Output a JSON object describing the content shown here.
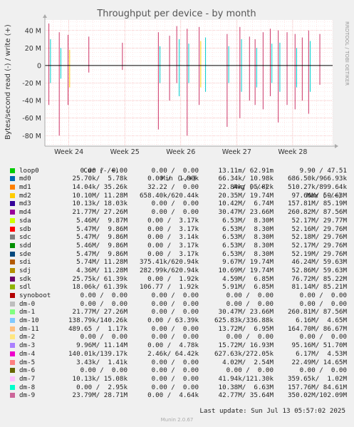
{
  "chart_data": {
    "type": "line",
    "title": "Throughput per device - by month",
    "ylabel": "Bytes/second read (-) / write (+)",
    "side_label": "RRDTOOL / TOBI OETIKER",
    "ylim": [
      -92000000,
      52000000
    ],
    "yticks": [
      {
        "v": 40000000,
        "label": "40 M"
      },
      {
        "v": 20000000,
        "label": "20 M"
      },
      {
        "v": 0,
        "label": "0"
      },
      {
        "v": -20000000,
        "label": "-20 M"
      },
      {
        "v": -40000000,
        "label": "-40 M"
      },
      {
        "v": -60000000,
        "label": "-60 M"
      },
      {
        "v": -80000000,
        "label": "-80 M"
      }
    ],
    "xlim": [
      0,
      36
    ],
    "xticks": [
      {
        "v": 3,
        "label": "Week 24"
      },
      {
        "v": 10,
        "label": "Week 25"
      },
      {
        "v": 17,
        "label": "Week 26"
      },
      {
        "v": 24,
        "label": "Week 27"
      },
      {
        "v": 31,
        "label": "Week 28"
      }
    ],
    "spikes": [
      {
        "x": 0.5,
        "up": 48,
        "down": -45,
        "color": "#cc3366"
      },
      {
        "x": 0.7,
        "up": 30,
        "down": -20,
        "color": "#00cccc"
      },
      {
        "x": 1.8,
        "up": 38,
        "down": -80,
        "color": "#cc3366"
      },
      {
        "x": 2.0,
        "up": 20,
        "down": -15,
        "color": "#00cccc"
      },
      {
        "x": 2.9,
        "up": 35,
        "down": -45,
        "color": "#cc3366"
      },
      {
        "x": 3.1,
        "up": 18,
        "down": -25,
        "color": "#ffcc00"
      },
      {
        "x": 5.5,
        "up": 33,
        "down": -8,
        "color": "#cc3366"
      },
      {
        "x": 9.7,
        "up": 26,
        "down": -5,
        "color": "#cc3366"
      },
      {
        "x": 14.2,
        "up": 38,
        "down": -73,
        "color": "#cc3366"
      },
      {
        "x": 14.4,
        "up": 22,
        "down": -20,
        "color": "#00cccc"
      },
      {
        "x": 15.6,
        "up": 34,
        "down": -40,
        "color": "#cc3366"
      },
      {
        "x": 16.5,
        "up": 45,
        "down": -20,
        "color": "#cc3366"
      },
      {
        "x": 16.8,
        "up": 30,
        "down": -35,
        "color": "#00cccc"
      },
      {
        "x": 17.8,
        "up": 42,
        "down": -80,
        "color": "#cc3366"
      },
      {
        "x": 18.0,
        "up": 25,
        "down": -20,
        "color": "#00cccc"
      },
      {
        "x": 19.3,
        "up": 44,
        "down": -45,
        "color": "#cc3366"
      },
      {
        "x": 19.5,
        "up": 28,
        "down": -25,
        "color": "#ffcc00"
      },
      {
        "x": 20.1,
        "up": 32,
        "down": -30,
        "color": "#00cccc"
      },
      {
        "x": 22.8,
        "up": 36,
        "down": -70,
        "color": "#cc3366"
      },
      {
        "x": 23.0,
        "up": 22,
        "down": -20,
        "color": "#00cccc"
      },
      {
        "x": 24.4,
        "up": 44,
        "down": -60,
        "color": "#cc3366"
      },
      {
        "x": 24.6,
        "up": 30,
        "down": -30,
        "color": "#00cccc"
      },
      {
        "x": 25.6,
        "up": 33,
        "down": -40,
        "color": "#cc3366"
      },
      {
        "x": 26.3,
        "up": 30,
        "down": -45,
        "color": "#cc3366"
      },
      {
        "x": 26.5,
        "up": 20,
        "down": -25,
        "color": "#00cccc"
      },
      {
        "x": 27.3,
        "up": 38,
        "down": -50,
        "color": "#cc3366"
      },
      {
        "x": 28.2,
        "up": 42,
        "down": -35,
        "color": "#cc3366"
      },
      {
        "x": 28.4,
        "up": 25,
        "down": -20,
        "color": "#00cccc"
      },
      {
        "x": 29.2,
        "up": 40,
        "down": -65,
        "color": "#cc3366"
      },
      {
        "x": 29.4,
        "up": 26,
        "down": -30,
        "color": "#00cccc"
      },
      {
        "x": 30.3,
        "up": 38,
        "down": -45,
        "color": "#cc3366"
      },
      {
        "x": 31.3,
        "up": 36,
        "down": -50,
        "color": "#cc3366"
      },
      {
        "x": 31.5,
        "up": 20,
        "down": -25,
        "color": "#00cccc"
      },
      {
        "x": 32.2,
        "up": 32,
        "down": -40,
        "color": "#cc3366"
      },
      {
        "x": 33.0,
        "up": 40,
        "down": -55,
        "color": "#cc3366"
      },
      {
        "x": 33.2,
        "up": 28,
        "down": -30,
        "color": "#00cccc"
      },
      {
        "x": 34.4,
        "up": 36,
        "down": -22,
        "color": "#cc3366"
      }
    ]
  },
  "legend": {
    "headers": {
      "cur": "Cur (-/+)",
      "min": "Min (-/+)",
      "avg": "Avg (-/+)",
      "max": "Max (-/+)"
    },
    "rows": [
      {
        "name": "loop0",
        "color": "#00cc00",
        "cur": "0.00 /  0.00",
        "min": "0.00 /  0.00",
        "avg": "13.11m/ 62.91m",
        "max": "9.90 / 47.51"
      },
      {
        "name": "md0",
        "color": "#0066b3",
        "cur": "25.70k/  5.78k",
        "min": "0.00 /  1.80k",
        "avg": "66.34k/ 10.98k",
        "max": "686.50k/966.93k"
      },
      {
        "name": "md1",
        "color": "#ff8000",
        "cur": "14.04k/ 35.26k",
        "min": "32.22 /  0.00",
        "avg": "22.84k/ 95.82k",
        "max": "510.27k/899.64k"
      },
      {
        "name": "md2",
        "color": "#ffcc00",
        "cur": "10.10M/ 11.28M",
        "min": "658.40k/620.44k",
        "avg": "20.35M/ 19.74M",
        "max": "97.66M/ 59.63M"
      },
      {
        "name": "md3",
        "color": "#330099",
        "cur": "10.13k/ 18.03k",
        "min": "0.00 /  0.00",
        "avg": "10.42M/  6.74M",
        "max": "157.81M/ 85.19M"
      },
      {
        "name": "md4",
        "color": "#990099",
        "cur": "21.77M/ 27.26M",
        "min": "0.00 /  0.00",
        "avg": "30.47M/ 23.66M",
        "max": "260.82M/ 87.56M"
      },
      {
        "name": "sda",
        "color": "#ccff00",
        "cur": "5.46M/  9.87M",
        "min": "0.00 /  3.17k",
        "avg": "6.53M/  8.30M",
        "max": "52.17M/ 29.77M"
      },
      {
        "name": "sdb",
        "color": "#ff0000",
        "cur": "5.47M/  9.86M",
        "min": "0.00 /  3.17k",
        "avg": "6.53M/  8.30M",
        "max": "52.16M/ 29.76M"
      },
      {
        "name": "sdc",
        "color": "#808080",
        "cur": "5.47M/  9.86M",
        "min": "0.00 /  3.14k",
        "avg": "6.53M/  8.30M",
        "max": "52.18M/ 29.76M"
      },
      {
        "name": "sdd",
        "color": "#008f00",
        "cur": "5.46M/  9.86M",
        "min": "0.00 /  3.17k",
        "avg": "6.53M/  8.30M",
        "max": "52.17M/ 29.76M"
      },
      {
        "name": "sde",
        "color": "#00487d",
        "cur": "5.47M/  9.86M",
        "min": "0.00 /  3.17k",
        "avg": "6.53M/  8.30M",
        "max": "52.19M/ 29.76M"
      },
      {
        "name": "sdi",
        "color": "#b35a00",
        "cur": "5.74M/ 11.28M",
        "min": "375.41k/620.94k",
        "avg": "9.67M/ 19.74M",
        "max": "46.24M/ 59.63M"
      },
      {
        "name": "sdj",
        "color": "#b38f00",
        "cur": "4.36M/ 11.28M",
        "min": "282.99k/620.94k",
        "avg": "10.69M/ 19.74M",
        "max": "52.86M/ 59.63M"
      },
      {
        "name": "sdk",
        "color": "#6b006b",
        "cur": "25.75k/ 61.39k",
        "min": "0.00 /  1.92k",
        "avg": "4.59M/  6.85M",
        "max": "76.72M/ 85.22M"
      },
      {
        "name": "sdl",
        "color": "#8fb300",
        "cur": "18.06k/ 61.39k",
        "min": "106.77 /  1.92k",
        "avg": "5.91M/  6.85M",
        "max": "81.14M/ 85.21M"
      },
      {
        "name": "synoboot",
        "color": "#b30000",
        "cur": "0.00 /  0.00",
        "min": "0.00 /  0.00",
        "avg": "0.00 /  0.00",
        "max": "0.00 /  0.00"
      },
      {
        "name": "dm-0",
        "color": "#bebebe",
        "cur": "0.00 /  0.00",
        "min": "0.00 /  0.00",
        "avg": "0.00 /  0.00",
        "max": "0.00 /  0.00"
      },
      {
        "name": "dm-1",
        "color": "#80ff80",
        "cur": "21.77M/ 27.26M",
        "min": "0.00 /  0.00",
        "avg": "30.47M/ 23.66M",
        "max": "260.81M/ 87.56M"
      },
      {
        "name": "dm-10",
        "color": "#80c9ff",
        "cur": "138.79k/140.26k",
        "min": "0.00 / 63.39k",
        "avg": "625.83k/336.88k",
        "max": "6.16M/  4.65M"
      },
      {
        "name": "dm-11",
        "color": "#ffc080",
        "cur": "489.65 /  1.17k",
        "min": "0.00 /  0.00",
        "avg": "13.72M/  6.95M",
        "max": "164.70M/ 86.67M"
      },
      {
        "name": "dm-2",
        "color": "#ffe680",
        "cur": "0.00 /  0.00",
        "min": "0.00 /  0.00",
        "avg": "0.00 /  0.00",
        "max": "0.00 /  0.00"
      },
      {
        "name": "dm-3",
        "color": "#aa80ff",
        "cur": "9.96M/ 11.14M",
        "min": "0.00 /  4.78k",
        "avg": "15.72M/ 16.93M",
        "max": "95.16M/ 51.70M"
      },
      {
        "name": "dm-4",
        "color": "#ee00cc",
        "cur": "140.01k/139.17k",
        "min": "2.46k/ 64.42k",
        "avg": "627.63k/272.05k",
        "max": "6.17M/  4.53M"
      },
      {
        "name": "dm-5",
        "color": "#ff8080",
        "cur": "3.43k/  1.41k",
        "min": "0.00 /  0.00",
        "avg": "4.02M/  2.54M",
        "max": "22.49M/ 14.65M"
      },
      {
        "name": "dm-6",
        "color": "#666600",
        "cur": "0.00 /  0.00",
        "min": "0.00 /  0.00",
        "avg": "0.00 /  0.00",
        "max": "0.00 /  0.00"
      },
      {
        "name": "dm-7",
        "color": "#ffbfff",
        "cur": "10.13k/ 15.08k",
        "min": "0.00 /  0.00",
        "avg": "41.94k/121.30k",
        "max": "359.65k/  1.02M"
      },
      {
        "name": "dm-8",
        "color": "#00ffcc",
        "cur": "0.00 /  2.95k",
        "min": "0.00 /  0.00",
        "avg": "10.38M/  6.63M",
        "max": "157.76M/ 84.61M"
      },
      {
        "name": "dm-9",
        "color": "#cc6699",
        "cur": "23.79M/ 28.71M",
        "min": "0.00 /  4.64k",
        "avg": "42.77M/ 35.64M",
        "max": "350.02M/102.09M"
      }
    ]
  },
  "last_update": "Last update:  Sun Jul 13 05:57:02 2025",
  "footer": "Munin 2.0.67"
}
